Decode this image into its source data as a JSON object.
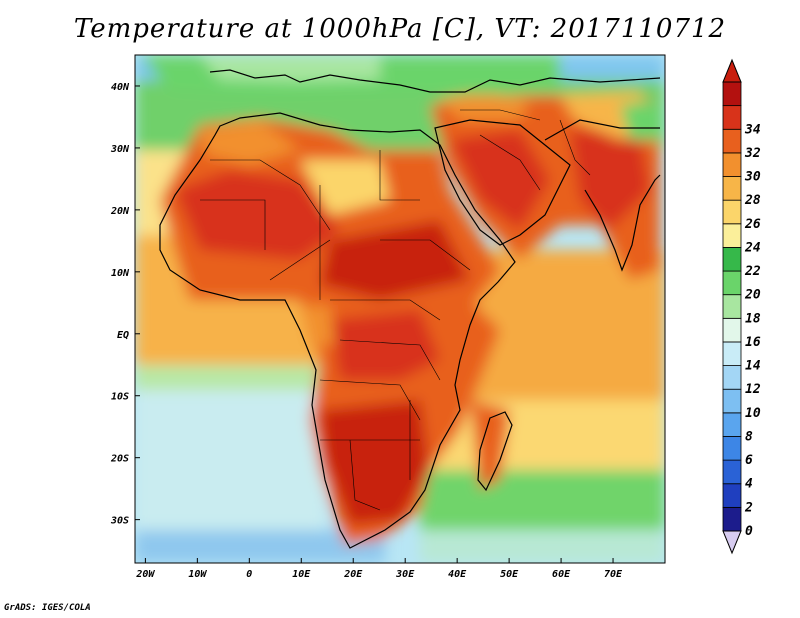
{
  "title": "Temperature at 1000hPa [C], VT: 2017110712",
  "credit": "GrADS: IGES/COLA",
  "map": {
    "lon_range": [
      -22,
      80
    ],
    "lat_range": [
      -37,
      45
    ],
    "lon_ticks": [
      {
        "value": -20,
        "label": "20W"
      },
      {
        "value": -10,
        "label": "10W"
      },
      {
        "value": 0,
        "label": "0"
      },
      {
        "value": 10,
        "label": "10E"
      },
      {
        "value": 20,
        "label": "20E"
      },
      {
        "value": 30,
        "label": "30E"
      },
      {
        "value": 40,
        "label": "40E"
      },
      {
        "value": 50,
        "label": "50E"
      },
      {
        "value": 60,
        "label": "60E"
      },
      {
        "value": 70,
        "label": "70E"
      }
    ],
    "lat_ticks": [
      {
        "value": 40,
        "label": "40N"
      },
      {
        "value": 30,
        "label": "30N"
      },
      {
        "value": 20,
        "label": "20N"
      },
      {
        "value": 10,
        "label": "10N"
      },
      {
        "value": 0,
        "label": "EQ"
      },
      {
        "value": -10,
        "label": "10S"
      },
      {
        "value": -20,
        "label": "20S"
      },
      {
        "value": -30,
        "label": "30S"
      }
    ]
  },
  "colorbar": {
    "levels": [
      "0",
      "2",
      "4",
      "6",
      "8",
      "10",
      "12",
      "14",
      "16",
      "18",
      "20",
      "22",
      "24",
      "26",
      "28",
      "30",
      "32",
      "34"
    ],
    "colors": [
      "#1c1c8c",
      "#1f3fbf",
      "#2a62d6",
      "#3d86e6",
      "#5aa5ee",
      "#7dbff2",
      "#a3d6f5",
      "#c9ecf7",
      "#e2f7ea",
      "#a8e6a0",
      "#6ad46a",
      "#36b84a",
      "#fbef9a",
      "#fbd56a",
      "#f7b548",
      "#f2902e",
      "#e8601e",
      "#d8331a",
      "#b3110f"
    ],
    "below_color": "#d7ccf0",
    "above_color": "#c81e0e"
  }
}
